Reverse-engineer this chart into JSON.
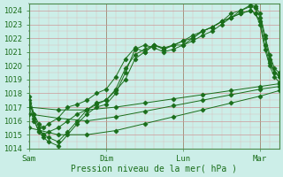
{
  "bg_color": "#cceee8",
  "grid_major_color": "#cc9999",
  "grid_minor_color": "#ddbbbb",
  "line_color": "#1a6e1a",
  "marker": "D",
  "marker_size": 2.5,
  "ylim": [
    1014,
    1024.5
  ],
  "yticks": [
    1014,
    1015,
    1016,
    1017,
    1018,
    1019,
    1020,
    1021,
    1022,
    1023,
    1024
  ],
  "xlabel": "Pression niveau de la mer( hPa )",
  "xtick_labels": [
    "Sam",
    "Dim",
    "Lun",
    "Mar"
  ],
  "xtick_positions": [
    0,
    96,
    192,
    288
  ],
  "total_hours": 312,
  "figsize": [
    3.2,
    2.0
  ],
  "dpi": 100,
  "lines": [
    {
      "x": [
        0,
        36,
        72,
        108,
        144,
        180,
        216,
        252,
        288,
        312
      ],
      "y": [
        1017.0,
        1016.8,
        1016.8,
        1017.0,
        1017.3,
        1017.6,
        1017.9,
        1018.2,
        1018.5,
        1018.7
      ]
    },
    {
      "x": [
        0,
        36,
        72,
        108,
        144,
        180,
        216,
        252,
        288,
        312
      ],
      "y": [
        1016.5,
        1016.2,
        1016.0,
        1016.3,
        1016.7,
        1017.1,
        1017.5,
        1017.9,
        1018.3,
        1018.5
      ]
    },
    {
      "x": [
        0,
        36,
        72,
        108,
        144,
        180,
        216,
        252,
        288,
        312
      ],
      "y": [
        1015.5,
        1015.0,
        1015.0,
        1015.3,
        1015.8,
        1016.3,
        1016.8,
        1017.3,
        1017.8,
        1018.2
      ]
    },
    {
      "x": [
        0,
        6,
        12,
        18,
        24,
        36,
        48,
        60,
        72,
        84,
        96,
        108,
        120,
        132,
        144,
        156,
        168,
        180,
        192,
        204,
        216,
        228,
        240,
        252,
        264,
        276,
        282,
        288,
        294,
        300,
        306,
        312
      ],
      "y": [
        1017.8,
        1016.5,
        1015.5,
        1015.0,
        1014.8,
        1014.5,
        1015.2,
        1016.0,
        1016.8,
        1017.3,
        1017.5,
        1018.2,
        1019.0,
        1020.5,
        1021.0,
        1021.5,
        1021.2,
        1021.5,
        1021.5,
        1022.0,
        1022.5,
        1022.8,
        1023.2,
        1023.8,
        1024.0,
        1024.3,
        1024.2,
        1023.5,
        1022.0,
        1020.5,
        1019.5,
        1019.2
      ]
    },
    {
      "x": [
        0,
        6,
        12,
        18,
        24,
        36,
        48,
        60,
        72,
        84,
        96,
        108,
        120,
        132,
        144,
        156,
        168,
        180,
        192,
        204,
        216,
        228,
        240,
        252,
        264,
        276,
        282,
        288,
        294,
        300,
        306,
        312
      ],
      "y": [
        1017.5,
        1016.2,
        1015.2,
        1014.8,
        1014.5,
        1014.2,
        1015.0,
        1015.8,
        1016.5,
        1017.0,
        1017.2,
        1018.0,
        1019.5,
        1021.2,
        1021.5,
        1021.3,
        1021.0,
        1021.2,
        1021.5,
        1021.8,
        1022.2,
        1022.5,
        1023.0,
        1023.5,
        1024.0,
        1024.4,
        1024.3,
        1023.8,
        1022.2,
        1020.8,
        1019.8,
        1019.5
      ]
    },
    {
      "x": [
        0,
        6,
        12,
        18,
        24,
        36,
        48,
        60,
        72,
        84,
        96,
        108,
        120,
        132,
        144,
        156,
        168,
        180,
        192,
        204,
        216,
        228,
        240,
        252,
        264,
        276,
        282,
        288,
        294,
        300,
        306,
        312
      ],
      "y": [
        1017.0,
        1016.0,
        1015.3,
        1015.0,
        1015.2,
        1015.5,
        1016.0,
        1016.5,
        1016.8,
        1017.2,
        1017.5,
        1018.3,
        1019.8,
        1020.8,
        1021.2,
        1021.5,
        1021.3,
        1021.5,
        1021.8,
        1022.2,
        1022.5,
        1022.8,
        1023.2,
        1023.5,
        1023.8,
        1024.0,
        1023.8,
        1023.2,
        1021.5,
        1020.2,
        1019.5,
        1019.3
      ]
    },
    {
      "x": [
        0,
        6,
        12,
        18,
        24,
        36,
        48,
        60,
        72,
        84,
        96,
        108,
        120,
        132,
        144,
        156,
        168,
        180,
        192,
        204,
        216,
        228,
        240,
        252,
        264,
        276,
        282,
        288,
        294,
        300,
        306,
        312
      ],
      "y": [
        1017.3,
        1016.5,
        1015.8,
        1015.5,
        1015.8,
        1016.2,
        1017.0,
        1017.2,
        1017.5,
        1018.0,
        1018.3,
        1019.2,
        1020.5,
        1021.3,
        1021.0,
        1021.5,
        1021.2,
        1021.5,
        1021.8,
        1022.0,
        1022.5,
        1022.8,
        1023.2,
        1023.5,
        1023.8,
        1024.0,
        1023.8,
        1023.0,
        1021.2,
        1020.0,
        1019.2,
        1018.8
      ]
    }
  ],
  "vline_color": "#4a8a4a",
  "tick_color": "#4a8a4a",
  "tick_label_color": "#1a6e1a"
}
